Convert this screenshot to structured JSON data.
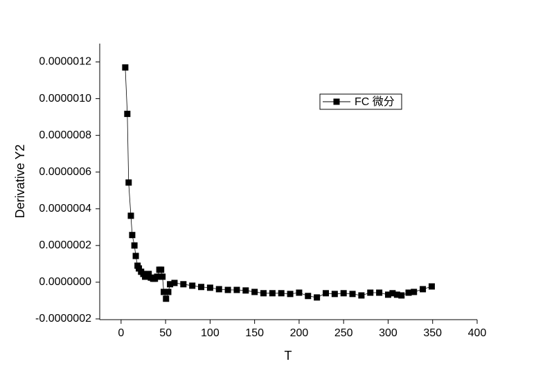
{
  "chart_data": {
    "type": "line",
    "x_label": "T",
    "y_label": "Derivative Y2",
    "xlim": [
      -24,
      400
    ],
    "xticks": [
      0,
      50,
      100,
      150,
      200,
      250,
      300,
      350,
      400
    ],
    "ylim": [
      -2.04e-07,
      1.3e-06
    ],
    "yticks": [
      {
        "value": -2e-07,
        "label": "-0.0000002"
      },
      {
        "value": 0,
        "label": "0.0000000"
      },
      {
        "value": 2e-07,
        "label": "0.0000002"
      },
      {
        "value": 4e-07,
        "label": "0.0000004"
      },
      {
        "value": 6e-07,
        "label": "0.0000006"
      },
      {
        "value": 8e-07,
        "label": "0.0000008"
      },
      {
        "value": 1e-06,
        "label": "0.0000010"
      },
      {
        "value": 1.2e-06,
        "label": "0.0000012"
      }
    ],
    "legend": "upper right",
    "series": [
      {
        "name": "FC 微分",
        "color": "#000000",
        "x": [
          4.7,
          7,
          8.5,
          11,
          12.5,
          15,
          16.5,
          18.5,
          20,
          22.5,
          25,
          27,
          29,
          31,
          33.5,
          36,
          38,
          40.5,
          43,
          45,
          46.5,
          48,
          50.5,
          53,
          55,
          60,
          70,
          80,
          90,
          100,
          110,
          120,
          130,
          140,
          150,
          160,
          170,
          180,
          190,
          200,
          210,
          220,
          230,
          240,
          250,
          260,
          270,
          280,
          290,
          300,
          305,
          310,
          315,
          323,
          329,
          339,
          349
        ],
        "values": [
          1.17e-06,
          9.17e-07,
          5.43e-07,
          3.62e-07,
          2.57e-07,
          2e-07,
          1.43e-07,
          9e-08,
          7.5e-08,
          5.7e-08,
          4.5e-08,
          3e-08,
          4e-08,
          4.5e-08,
          2.5e-08,
          1.9e-08,
          1.9e-08,
          3e-08,
          6.8e-08,
          6.8e-08,
          3e-08,
          -5.3e-08,
          -9e-08,
          -5.3e-08,
          -1.1e-08,
          -4e-09,
          -1.1e-08,
          -1.9e-08,
          -2.6e-08,
          -3e-08,
          -3.8e-08,
          -4.2e-08,
          -4.2e-08,
          -4.5e-08,
          -5.3e-08,
          -6e-08,
          -6e-08,
          -6e-08,
          -6.4e-08,
          -5.7e-08,
          -7.5e-08,
          -8.3e-08,
          -6e-08,
          -6.4e-08,
          -6e-08,
          -6.4e-08,
          -7.2e-08,
          -5.7e-08,
          -5.7e-08,
          -6.8e-08,
          -6e-08,
          -6.8e-08,
          -7.2e-08,
          -5.7e-08,
          -5.3e-08,
          -3.8e-08,
          -2.3e-08
        ]
      }
    ]
  }
}
